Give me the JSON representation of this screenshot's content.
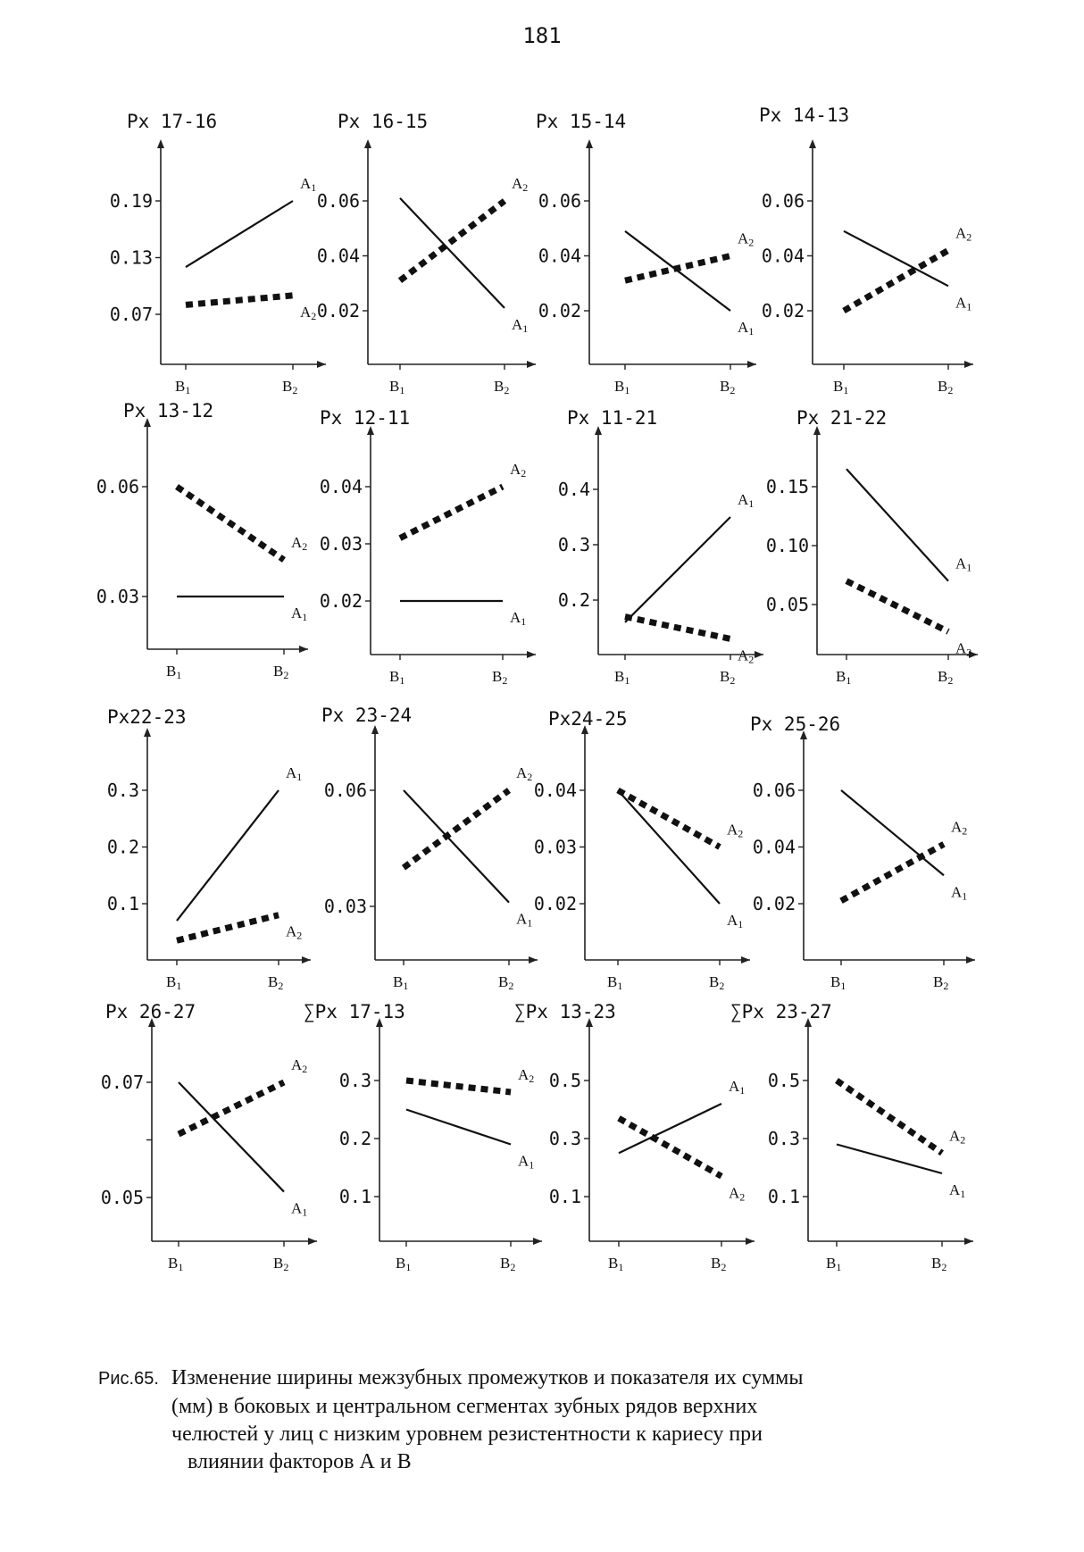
{
  "page_number": "181",
  "caption": {
    "label": "Рис.65.",
    "lines": [
      "Изменение ширины межзубных промежутков и показателя их суммы",
      "(мм) в боковых и центральном сегментах зубных рядов верхних",
      "челюстей у лиц с низким уровнем резистентности к кариесу при",
      "влиянии факторов А и В"
    ]
  },
  "chart_data": [
    {
      "type": "line",
      "title": "Px 17-16",
      "categories": [
        "B1",
        "B2"
      ],
      "yticks": [
        "0.19",
        "0.13",
        "0.07"
      ],
      "ylim": [
        0.0,
        0.24
      ],
      "series": [
        {
          "name": "A1",
          "style": "solid",
          "values": [
            0.12,
            0.19
          ]
        },
        {
          "name": "A2",
          "style": "dashed",
          "values": [
            0.08,
            0.09
          ]
        }
      ]
    },
    {
      "type": "line",
      "title": "Px 16-15",
      "categories": [
        "B1",
        "B2"
      ],
      "yticks": [
        "0.06",
        "0.04",
        "0.02"
      ],
      "ylim": [
        0.0,
        0.08
      ],
      "series": [
        {
          "name": "A1",
          "style": "solid",
          "values": [
            0.061,
            0.021
          ]
        },
        {
          "name": "A2",
          "style": "dashed",
          "values": [
            0.031,
            0.06
          ]
        }
      ]
    },
    {
      "type": "line",
      "title": "Px 15-14",
      "categories": [
        "B1",
        "B2"
      ],
      "yticks": [
        "0.06",
        "0.04",
        "0.02"
      ],
      "ylim": [
        0.0,
        0.08
      ],
      "series": [
        {
          "name": "A1",
          "style": "solid",
          "values": [
            0.049,
            0.02
          ]
        },
        {
          "name": "A2",
          "style": "dashed",
          "values": [
            0.031,
            0.04
          ]
        }
      ]
    },
    {
      "type": "line",
      "title": "Px 14-13",
      "categories": [
        "B1",
        "B2"
      ],
      "yticks": [
        "0.06",
        "0.04",
        "0.02"
      ],
      "ylim": [
        0.0,
        0.08
      ],
      "series": [
        {
          "name": "A1",
          "style": "solid",
          "values": [
            0.049,
            0.029
          ]
        },
        {
          "name": "A2",
          "style": "dashed",
          "values": [
            0.02,
            0.042
          ]
        }
      ]
    },
    {
      "type": "line",
      "title": "Px 13-12",
      "categories": [
        "B1",
        "B2"
      ],
      "yticks": [
        "0.06",
        "0.03"
      ],
      "ylim": [
        0.015,
        0.075
      ],
      "series": [
        {
          "name": "A1",
          "style": "solid",
          "values": [
            0.03,
            0.03
          ]
        },
        {
          "name": "A2",
          "style": "dashed",
          "values": [
            0.06,
            0.04
          ]
        }
      ]
    },
    {
      "type": "line",
      "title": "Px 12-11",
      "categories": [
        "B1",
        "B2"
      ],
      "yticks": [
        "0.04",
        "0.03",
        "0.02"
      ],
      "ylim": [
        0.011,
        0.05
      ],
      "series": [
        {
          "name": "A1",
          "style": "solid",
          "values": [
            0.02,
            0.02
          ]
        },
        {
          "name": "A2",
          "style": "dashed",
          "values": [
            0.031,
            0.04
          ]
        }
      ]
    },
    {
      "type": "line",
      "title": "Px 11-21",
      "categories": [
        "B1",
        "B2"
      ],
      "yticks": [
        "0.4",
        "0.3",
        "0.2"
      ],
      "ylim": [
        0.11,
        0.5
      ],
      "series": [
        {
          "name": "A1",
          "style": "solid",
          "values": [
            0.16,
            0.35
          ]
        },
        {
          "name": "A2",
          "style": "dashed",
          "values": [
            0.17,
            0.13
          ]
        }
      ]
    },
    {
      "type": "line",
      "title": "Px 21-22",
      "categories": [
        "B1",
        "B2"
      ],
      "yticks": [
        "0.15",
        "0.10",
        "0.05"
      ],
      "ylim": [
        0.01,
        0.2
      ],
      "series": [
        {
          "name": "A1",
          "style": "solid",
          "values": [
            0.165,
            0.07
          ]
        },
        {
          "name": "A2",
          "style": "dashed",
          "values": [
            0.07,
            0.027
          ]
        }
      ]
    },
    {
      "type": "line",
      "title": "Px22-23",
      "categories": [
        "B1",
        "B2"
      ],
      "yticks": [
        "0.3",
        "0.2",
        "0.1"
      ],
      "ylim": [
        0.0,
        0.39
      ],
      "series": [
        {
          "name": "A1",
          "style": "solid",
          "values": [
            0.07,
            0.3
          ]
        },
        {
          "name": "A2",
          "style": "dashed",
          "values": [
            0.035,
            0.08
          ]
        }
      ]
    },
    {
      "type": "line",
      "title": "Px 23-24",
      "categories": [
        "B1",
        "B2"
      ],
      "yticks": [
        "0.06",
        "0.03"
      ],
      "ylim": [
        0.01,
        0.075
      ],
      "series": [
        {
          "name": "A1",
          "style": "solid",
          "values": [
            0.06,
            0.031
          ]
        },
        {
          "name": "A2",
          "style": "dashed",
          "values": [
            0.04,
            0.06
          ]
        }
      ]
    },
    {
      "type": "line",
      "title": "Px24-25",
      "categories": [
        "B1",
        "B2"
      ],
      "yticks": [
        "0.04",
        "0.03",
        "0.02"
      ],
      "ylim": [
        0.011,
        0.048
      ],
      "series": [
        {
          "name": "A1",
          "style": "solid",
          "values": [
            0.04,
            0.02
          ]
        },
        {
          "name": "A2",
          "style": "dashed",
          "values": [
            0.04,
            0.03
          ]
        }
      ]
    },
    {
      "type": "line",
      "title": "Px 25-26",
      "categories": [
        "B1",
        "B2"
      ],
      "yticks": [
        "0.06",
        "0.04",
        "0.02"
      ],
      "ylim": [
        0.002,
        0.078
      ],
      "series": [
        {
          "name": "A1",
          "style": "solid",
          "values": [
            0.06,
            0.03
          ]
        },
        {
          "name": "A2",
          "style": "dashed",
          "values": [
            0.021,
            0.041
          ]
        }
      ]
    },
    {
      "type": "line",
      "title": "Px 26-27",
      "categories": [
        "B1",
        "B2"
      ],
      "yticks": [
        "0.07",
        "",
        "0.05"
      ],
      "ylim": [
        0.042,
        0.078
      ],
      "series": [
        {
          "name": "A1",
          "style": "solid",
          "values": [
            0.07,
            0.051
          ]
        },
        {
          "name": "A2",
          "style": "dashed",
          "values": [
            0.061,
            0.07
          ]
        }
      ]
    },
    {
      "type": "line",
      "title": "∑Px 17-13",
      "categories": [
        "B1",
        "B2"
      ],
      "yticks": [
        "0.3",
        "0.2",
        "0.1"
      ],
      "ylim": [
        0.02,
        0.38
      ],
      "series": [
        {
          "name": "A1",
          "style": "solid",
          "values": [
            0.25,
            0.19
          ]
        },
        {
          "name": "A2",
          "style": "dashed",
          "values": [
            0.3,
            0.28
          ]
        }
      ]
    },
    {
      "type": "line",
      "title": "∑Px 13-23",
      "categories": [
        "B1",
        "B2"
      ],
      "yticks": [
        "0.5",
        "0.3",
        "0.1"
      ],
      "ylim": [
        -0.05,
        0.64
      ],
      "series": [
        {
          "name": "A1",
          "style": "solid",
          "values": [
            0.25,
            0.42
          ]
        },
        {
          "name": "A2",
          "style": "dashed",
          "values": [
            0.37,
            0.17
          ]
        }
      ]
    },
    {
      "type": "line",
      "title": "∑Px 23-27",
      "categories": [
        "B1",
        "B2"
      ],
      "yticks": [
        "0.5",
        "0.3",
        "0.1"
      ],
      "ylim": [
        -0.05,
        0.64
      ],
      "series": [
        {
          "name": "A1",
          "style": "solid",
          "values": [
            0.28,
            0.18
          ]
        },
        {
          "name": "A2",
          "style": "dashed",
          "values": [
            0.5,
            0.25
          ]
        }
      ]
    }
  ]
}
